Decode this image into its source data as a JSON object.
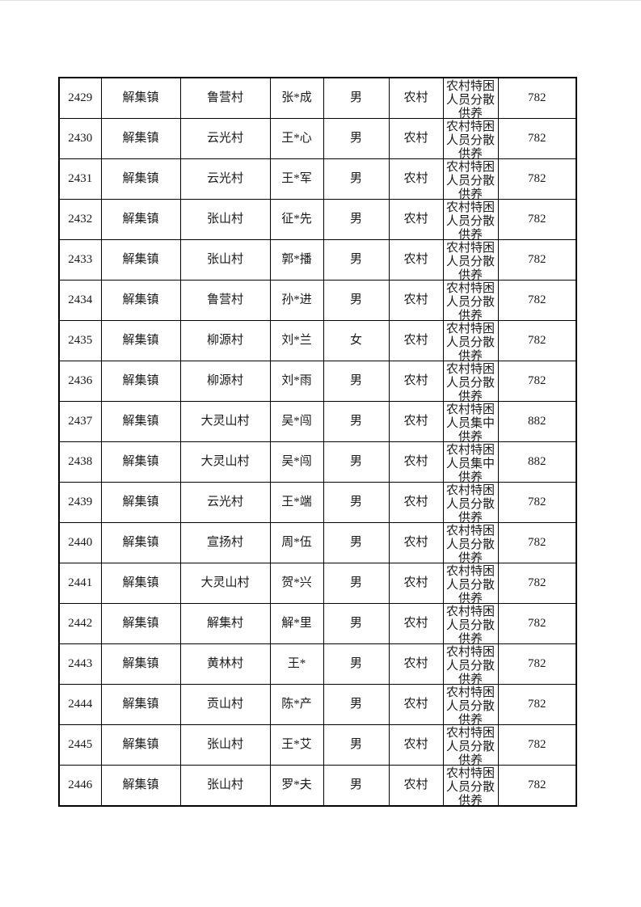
{
  "page": {
    "background_color": "#ffffff",
    "border_color": "#000000",
    "text_color": "#1a1a1a"
  },
  "table": {
    "rows": [
      {
        "serial": "2429",
        "town": "解集镇",
        "village": "鲁营村",
        "name": "张*成",
        "gender": "男",
        "category": "农村",
        "support_type": "农村特困人员分散供养",
        "amount": "782"
      },
      {
        "serial": "2430",
        "town": "解集镇",
        "village": "云光村",
        "name": "王*心",
        "gender": "男",
        "category": "农村",
        "support_type": "农村特困人员分散供养",
        "amount": "782"
      },
      {
        "serial": "2431",
        "town": "解集镇",
        "village": "云光村",
        "name": "王*军",
        "gender": "男",
        "category": "农村",
        "support_type": "农村特困人员分散供养",
        "amount": "782"
      },
      {
        "serial": "2432",
        "town": "解集镇",
        "village": "张山村",
        "name": "征*先",
        "gender": "男",
        "category": "农村",
        "support_type": "农村特困人员分散供养",
        "amount": "782"
      },
      {
        "serial": "2433",
        "town": "解集镇",
        "village": "张山村",
        "name": "郭*播",
        "gender": "男",
        "category": "农村",
        "support_type": "农村特困人员分散供养",
        "amount": "782"
      },
      {
        "serial": "2434",
        "town": "解集镇",
        "village": "鲁营村",
        "name": "孙*进",
        "gender": "男",
        "category": "农村",
        "support_type": "农村特困人员分散供养",
        "amount": "782"
      },
      {
        "serial": "2435",
        "town": "解集镇",
        "village": "柳源村",
        "name": "刘*兰",
        "gender": "女",
        "category": "农村",
        "support_type": "农村特困人员分散供养",
        "amount": "782"
      },
      {
        "serial": "2436",
        "town": "解集镇",
        "village": "柳源村",
        "name": "刘*雨",
        "gender": "男",
        "category": "农村",
        "support_type": "农村特困人员分散供养",
        "amount": "782"
      },
      {
        "serial": "2437",
        "town": "解集镇",
        "village": "大灵山村",
        "name": "吴*闯",
        "gender": "男",
        "category": "农村",
        "support_type": "农村特困人员集中供养",
        "amount": "882"
      },
      {
        "serial": "2438",
        "town": "解集镇",
        "village": "大灵山村",
        "name": "吴*闯",
        "gender": "男",
        "category": "农村",
        "support_type": "农村特困人员集中供养",
        "amount": "882"
      },
      {
        "serial": "2439",
        "town": "解集镇",
        "village": "云光村",
        "name": "王*端",
        "gender": "男",
        "category": "农村",
        "support_type": "农村特困人员分散供养",
        "amount": "782"
      },
      {
        "serial": "2440",
        "town": "解集镇",
        "village": "宣扬村",
        "name": "周*伍",
        "gender": "男",
        "category": "农村",
        "support_type": "农村特困人员分散供养",
        "amount": "782"
      },
      {
        "serial": "2441",
        "town": "解集镇",
        "village": "大灵山村",
        "name": "贺*兴",
        "gender": "男",
        "category": "农村",
        "support_type": "农村特困人员分散供养",
        "amount": "782"
      },
      {
        "serial": "2442",
        "town": "解集镇",
        "village": "解集村",
        "name": "解*里",
        "gender": "男",
        "category": "农村",
        "support_type": "农村特困人员分散供养",
        "amount": "782"
      },
      {
        "serial": "2443",
        "town": "解集镇",
        "village": "黄林村",
        "name": "王*",
        "gender": "男",
        "category": "农村",
        "support_type": "农村特困人员分散供养",
        "amount": "782"
      },
      {
        "serial": "2444",
        "town": "解集镇",
        "village": "贡山村",
        "name": "陈*产",
        "gender": "男",
        "category": "农村",
        "support_type": "农村特困人员分散供养",
        "amount": "782"
      },
      {
        "serial": "2445",
        "town": "解集镇",
        "village": "张山村",
        "name": "王*艾",
        "gender": "男",
        "category": "农村",
        "support_type": "农村特困人员分散供养",
        "amount": "782"
      },
      {
        "serial": "2446",
        "town": "解集镇",
        "village": "张山村",
        "name": "罗*夫",
        "gender": "男",
        "category": "农村",
        "support_type": "农村特困人员分散供养",
        "amount": "782"
      }
    ]
  }
}
